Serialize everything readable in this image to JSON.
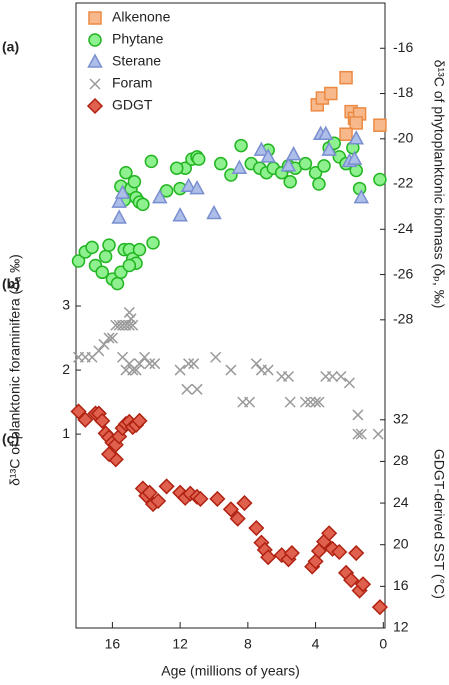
{
  "chart_data": [
    {
      "type": "scatter",
      "panel": "(a)",
      "ylabel": "δ¹³C of phytoplanktonic biomass (δₚ, ‰)",
      "yside": "right",
      "xlim": [
        18.15,
        -0.1
      ],
      "ylim": [
        -28.45,
        -14.0
      ],
      "yticks": [
        -16,
        -18,
        -20,
        -22,
        -24,
        -26,
        -28
      ],
      "series": [
        {
          "name": "Alkenone",
          "marker": "square",
          "color": "#f7b98b",
          "edge": "#ec8a44",
          "x": [
            3.9,
            3.6,
            3.1,
            2.2,
            1.9,
            1.7,
            1.4,
            1.6,
            2.2,
            0.2
          ],
          "values": [
            -18.5,
            -18.2,
            -18.0,
            -17.3,
            -18.8,
            -19.1,
            -18.9,
            -19.3,
            -19.8,
            -19.4
          ]
        },
        {
          "name": "Phytane",
          "marker": "circle",
          "color": "#8ef08e",
          "edge": "#22b622",
          "x": [
            18.0,
            17.6,
            17.2,
            17.0,
            16.6,
            16.4,
            16.2,
            16.0,
            15.7,
            15.5,
            15.3,
            15.0,
            14.8,
            14.6,
            14.4,
            15.0,
            13.6,
            15.5,
            15.2,
            14.9,
            14.7,
            14.6,
            14.4,
            14.2,
            15.3,
            13.7,
            12.8,
            12.0,
            11.7,
            11.3,
            11.0,
            9.6,
            8.4,
            7.8,
            7.3,
            6.9,
            6.5,
            6.0,
            5.6,
            5.2,
            4.6,
            4.0,
            3.8,
            3.5,
            3.2,
            2.9,
            2.6,
            2.2,
            1.8,
            1.6,
            1.4,
            0.2,
            12.2,
            10.9,
            9.0,
            6.8,
            5.5
          ],
          "values": [
            -25.4,
            -25.0,
            -24.8,
            -25.6,
            -25.9,
            -25.2,
            -24.7,
            -26.2,
            -26.4,
            -25.9,
            -24.9,
            -24.9,
            -25.3,
            -25.5,
            -24.9,
            -25.6,
            -24.6,
            -22.1,
            -21.5,
            -22.2,
            -21.9,
            -22.6,
            -22.8,
            -22.9,
            -22.7,
            -21.0,
            -22.3,
            -22.2,
            -21.3,
            -20.9,
            -20.8,
            -21.1,
            -20.3,
            -21.1,
            -21.3,
            -21.5,
            -21.3,
            -21.5,
            -21.2,
            -21.3,
            -21.1,
            -21.5,
            -22.0,
            -21.2,
            -20.4,
            -20.2,
            -20.8,
            -21.1,
            -20.4,
            -21.4,
            -22.2,
            -21.8,
            -21.3,
            -20.9,
            -21.6,
            -20.5,
            -21.9
          ]
        },
        {
          "name": "Sterane",
          "marker": "triangle",
          "color": "#adbfe8",
          "edge": "#7a8fd0",
          "x": [
            15.6,
            15.6,
            15.4,
            13.2,
            12.0,
            11.5,
            11.0,
            10.0,
            8.5,
            7.2,
            6.8,
            5.6,
            5.3,
            3.7,
            3.4,
            3.2,
            2.0,
            1.6,
            1.3,
            1.7
          ],
          "values": [
            -22.8,
            -23.5,
            -22.4,
            -22.6,
            -23.4,
            -22.1,
            -22.2,
            -23.3,
            -21.3,
            -20.5,
            -20.8,
            -21.2,
            -20.7,
            -19.8,
            -19.8,
            -20.5,
            -21.0,
            -20.0,
            -22.6,
            -20.9
          ]
        }
      ]
    },
    {
      "type": "scatter",
      "panel": "(b)",
      "ylabel": "δ¹³C of planktonic foraminifera (δₐ ‰)",
      "yside": "left",
      "xlim": [
        18.15,
        -0.1
      ],
      "ylim": [
        0.44,
        3.25
      ],
      "yticks": [
        3,
        2,
        1
      ],
      "series": [
        {
          "name": "Foram",
          "marker": "cross",
          "color": "#9a9a9a",
          "edge": "#9a9a9a",
          "x": [
            18.0,
            17.6,
            17.2,
            16.8,
            16.5,
            16.2,
            16.0,
            15.8,
            15.6,
            15.4,
            15.2,
            15.0,
            14.8,
            15.0,
            14.9,
            15.4,
            15.2,
            15.0,
            14.8,
            14.6,
            14.4,
            14.1,
            13.8,
            13.5,
            12.0,
            11.6,
            11.5,
            11.2,
            11.0,
            9.9,
            9.0,
            8.3,
            7.9,
            7.5,
            7.2,
            6.8,
            6.0,
            5.6,
            5.5,
            4.6,
            4.3,
            4.0,
            3.8,
            3.4,
            3.0,
            2.5,
            2.0,
            1.5,
            1.3,
            1.5,
            0.3
          ],
          "values": [
            2.2,
            2.2,
            2.2,
            2.3,
            2.4,
            2.5,
            2.5,
            2.7,
            2.7,
            2.7,
            2.7,
            2.7,
            2.7,
            2.9,
            2.8,
            2.2,
            2.0,
            2.1,
            2.0,
            2.0,
            2.1,
            2.2,
            2.1,
            2.1,
            2.0,
            1.7,
            2.1,
            2.1,
            1.7,
            2.2,
            2.0,
            1.5,
            1.5,
            2.1,
            2.0,
            2.0,
            1.9,
            1.9,
            1.5,
            1.5,
            1.5,
            1.5,
            1.5,
            1.9,
            1.9,
            1.9,
            1.8,
            1.3,
            1.0,
            1.0,
            1.0
          ]
        }
      ]
    },
    {
      "type": "scatter",
      "panel": "(c)",
      "ylabel": "GDGT-derived SST (°C)",
      "yside": "right",
      "xlabel": "Age (millions of years)",
      "xlim": [
        18.15,
        -0.1
      ],
      "xticks": [
        16,
        12,
        8,
        4,
        0
      ],
      "ylim": [
        12,
        33.9
      ],
      "yticks": [
        32,
        28,
        24,
        20,
        16,
        12
      ],
      "series": [
        {
          "name": "GDGT",
          "marker": "diamond",
          "color": "#e0604e",
          "edge": "#b02212",
          "x": [
            18.0,
            17.6,
            17.0,
            16.8,
            16.6,
            16.4,
            16.2,
            16.0,
            15.8,
            15.6,
            15.4,
            15.2,
            15.0,
            14.8,
            14.6,
            14.4,
            15.8,
            16.2,
            14.2,
            14.0,
            13.8,
            13.6,
            13.3,
            12.8,
            12.0,
            11.7,
            11.4,
            11.0,
            10.8,
            9.8,
            9.0,
            8.6,
            8.2,
            7.5,
            7.2,
            7.0,
            6.8,
            6.0,
            5.6,
            5.4,
            4.2,
            4.0,
            3.8,
            3.5,
            3.2,
            3.0,
            2.6,
            2.2,
            1.9,
            1.6,
            1.4,
            1.2,
            0.2
          ],
          "values": [
            32.8,
            32.0,
            32.6,
            32.6,
            31.9,
            30.7,
            30.3,
            29.8,
            29.6,
            30.4,
            31.2,
            31.6,
            31.8,
            31.3,
            31.5,
            31.9,
            28.2,
            28.7,
            25.4,
            24.7,
            25.0,
            23.9,
            24.2,
            25.6,
            25.0,
            24.5,
            24.9,
            24.6,
            24.4,
            24.4,
            23.4,
            22.5,
            24.0,
            21.6,
            20.2,
            19.5,
            18.8,
            19.0,
            18.6,
            19.2,
            17.9,
            18.4,
            19.4,
            20.3,
            21.1,
            19.6,
            19.3,
            17.3,
            16.6,
            19.2,
            15.6,
            16.2,
            14.0
          ]
        }
      ]
    }
  ]
}
